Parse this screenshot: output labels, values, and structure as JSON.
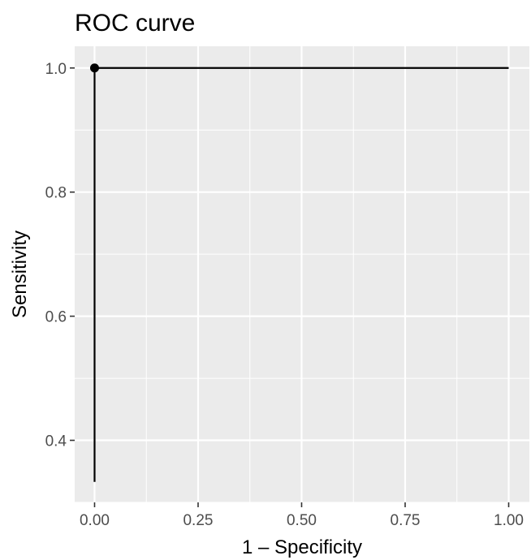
{
  "chart_data": {
    "type": "line",
    "title": "ROC curve",
    "xlabel": "1 – Specificity",
    "ylabel": "Sensitivity",
    "xlim": [
      -0.048,
      1.05
    ],
    "ylim": [
      0.3,
      1.035
    ],
    "x_ticks": [
      0,
      0.25,
      0.5,
      0.75,
      1
    ],
    "x_tick_labels": [
      "0.00",
      "0.25",
      "0.50",
      "0.75",
      "1.00"
    ],
    "y_ticks": [
      0.4,
      0.6,
      0.8,
      1.0
    ],
    "y_tick_labels": [
      "0.4",
      "0.6",
      "0.8",
      "1.0"
    ],
    "grid": true,
    "series": [
      {
        "x": [
          0,
          0,
          1
        ],
        "y": [
          0.333,
          1,
          1
        ],
        "color": "#000000"
      }
    ],
    "points": [
      {
        "x": 0,
        "y": 1,
        "color": "#000000"
      }
    ],
    "colors": {
      "panel_background": "#ebebeb",
      "grid": "#ffffff",
      "tick_text": "#4d4d4d",
      "tick_mark": "#333333"
    }
  }
}
